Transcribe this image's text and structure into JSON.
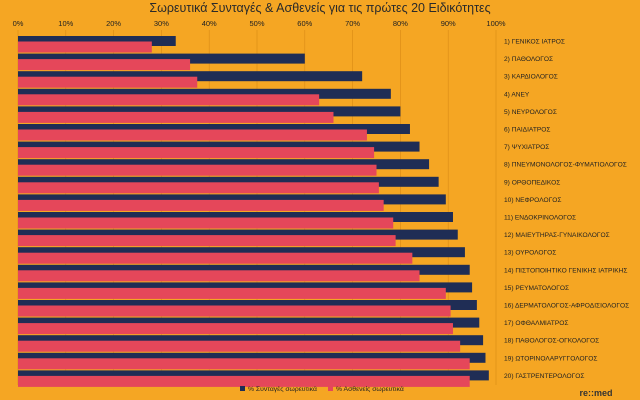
{
  "colors": {
    "background": "#f5a623",
    "prescriptions": "#1f2d55",
    "patients": "#e5475a"
  },
  "logo": "re::med",
  "chart_data": {
    "type": "bar",
    "orientation": "horizontal",
    "title": "Σωρευτικά Συνταγές & Ασθενείς για τις πρώτες 20  Ειδικότητες",
    "xlim": [
      0,
      100
    ],
    "x_ticks": [
      "0%",
      "10%",
      "20%",
      "30%",
      "40%",
      "50%",
      "60%",
      "70%",
      "80%",
      "90%",
      "100%"
    ],
    "legend_position": "bottom",
    "categories": [
      "1) ΓΕΝΙΚΟΣ ΙΑΤΡΟΣ",
      "2) ΠΑΘΟΛΟΓΟΣ",
      "3) ΚΑΡΔΙΟΛΟΓΟΣ",
      "4) ΑΝΕΥ",
      "5) ΝΕΥΡΟΛΟΓΟΣ",
      "6) ΠΑΙΔΙΑΤΡΟΣ",
      "7) ΨΥΧΙΑΤΡΟΣ",
      "8) ΠΝΕΥΜΟΝΟΛΟΓΟΣ-ΦΥΜΑΤΙΟΛΟΓΟΣ",
      "9) ΟΡΘΟΠΕΔΙΚΟΣ",
      "10) ΝΕΦΡΟΛΟΓΟΣ",
      "11) ΕΝΔΟΚΡΙΝΟΛΟΓΟΣ",
      "12) ΜΑΙΕΥΤΗΡΑΣ-ΓΥΝΑΙΚΟΛΟΓΟΣ",
      "13) ΟΥΡΟΛΟΓΟΣ",
      "14) ΠΙΣΤΟΠΟΙΗΤΙΚΟ ΓΕΝΙΚΗΣ ΙΑΤΡΙΚΗΣ",
      "15) ΡΕΥΜΑΤΟΛΟΓΟΣ",
      "16) ΔΕΡΜΑΤΟΛΟΓΟΣ-ΑΦΡΟΔΙΣΙΟΛΟΓΟΣ",
      "17) ΟΦΘΑΛΜΙΑΤΡΟΣ",
      "18) ΠΑΘΟΛΟΓΟΣ-ΟΓΚΟΛΟΓΟΣ",
      "19) ΩΤΟΡΙΝΟΛΑΡΥΓΓΟΛΟΓΟΣ",
      "20) ΓΑΣΤΡΕΝΤΕΡΟΛΟΓΟΣ"
    ],
    "series": [
      {
        "name": "% Συνταγές σωρευτικά",
        "values": [
          33,
          60,
          72,
          78,
          80,
          82,
          84,
          86,
          88,
          89.5,
          91,
          92,
          93.5,
          94.5,
          95,
          96,
          96.5,
          97.3,
          97.8,
          98.5
        ]
      },
      {
        "name": "% Ασθενείς σωρευτικά",
        "values": [
          28,
          36,
          37.5,
          63,
          66,
          73,
          74.5,
          75,
          75.5,
          76.5,
          78.5,
          79,
          82.5,
          84,
          89.5,
          90.5,
          91,
          92.5,
          94.5,
          94.5
        ]
      }
    ]
  }
}
